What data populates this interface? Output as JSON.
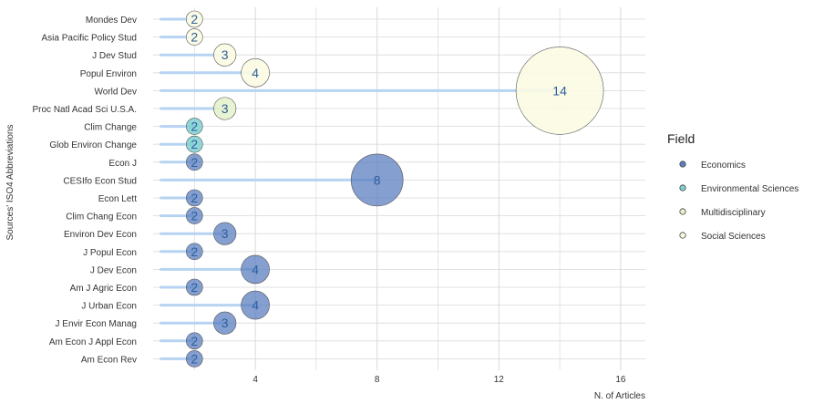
{
  "chart_data": {
    "type": "scatter",
    "xlabel": "N. of Articles",
    "ylabel": "Sources' ISO4 Abbreviations",
    "xlim": [
      0,
      17
    ],
    "xticks": [
      4,
      8,
      12,
      16
    ],
    "grid": true,
    "legend": {
      "title": "Field",
      "placement": "right",
      "entries": [
        {
          "name": "Economics",
          "color": "#5b7fc0"
        },
        {
          "name": "Environmental Sciences",
          "color": "#7fd0d0"
        },
        {
          "name": "Multidisciplinary",
          "color": "#e6f2cc"
        },
        {
          "name": "Social Sciences",
          "color": "#fbfbe3"
        }
      ]
    },
    "colors": {
      "Economics": "#5b7fc0",
      "Environmental Sciences": "#7fd0d0",
      "Multidisciplinary": "#e6f2cc",
      "Social Sciences": "#fbfbe3",
      "lollipop": "#b7d3f2",
      "grid": "#d9d9d9"
    },
    "points": [
      {
        "source": "Mondes Dev",
        "value": 2,
        "field": "Social Sciences"
      },
      {
        "source": "Asia Pacific Policy Stud",
        "value": 2,
        "field": "Social Sciences"
      },
      {
        "source": "J Dev Stud",
        "value": 3,
        "field": "Social Sciences"
      },
      {
        "source": "Popul Environ",
        "value": 4,
        "field": "Social Sciences"
      },
      {
        "source": "World Dev",
        "value": 14,
        "field": "Social Sciences"
      },
      {
        "source": "Proc Natl Acad Sci U.S.A.",
        "value": 3,
        "field": "Multidisciplinary"
      },
      {
        "source": "Clim Change",
        "value": 2,
        "field": "Environmental Sciences"
      },
      {
        "source": "Glob Environ Change",
        "value": 2,
        "field": "Environmental Sciences"
      },
      {
        "source": "Econ J",
        "value": 2,
        "field": "Economics"
      },
      {
        "source": "CESIfo Econ Stud",
        "value": 8,
        "field": "Economics"
      },
      {
        "source": "Econ Lett",
        "value": 2,
        "field": "Economics"
      },
      {
        "source": "Clim Chang Econ",
        "value": 2,
        "field": "Economics"
      },
      {
        "source": "Environ Dev Econ",
        "value": 3,
        "field": "Economics"
      },
      {
        "source": "J Popul Econ",
        "value": 2,
        "field": "Economics"
      },
      {
        "source": "J Dev Econ",
        "value": 4,
        "field": "Economics"
      },
      {
        "source": "Am J Agric Econ",
        "value": 2,
        "field": "Economics"
      },
      {
        "source": "J Urban Econ",
        "value": 4,
        "field": "Economics"
      },
      {
        "source": "J Envir Econ Manag",
        "value": 3,
        "field": "Economics"
      },
      {
        "source": "Am Econ J Appl Econ",
        "value": 2,
        "field": "Economics"
      },
      {
        "source": "Am Econ Rev",
        "value": 2,
        "field": "Economics"
      }
    ]
  }
}
